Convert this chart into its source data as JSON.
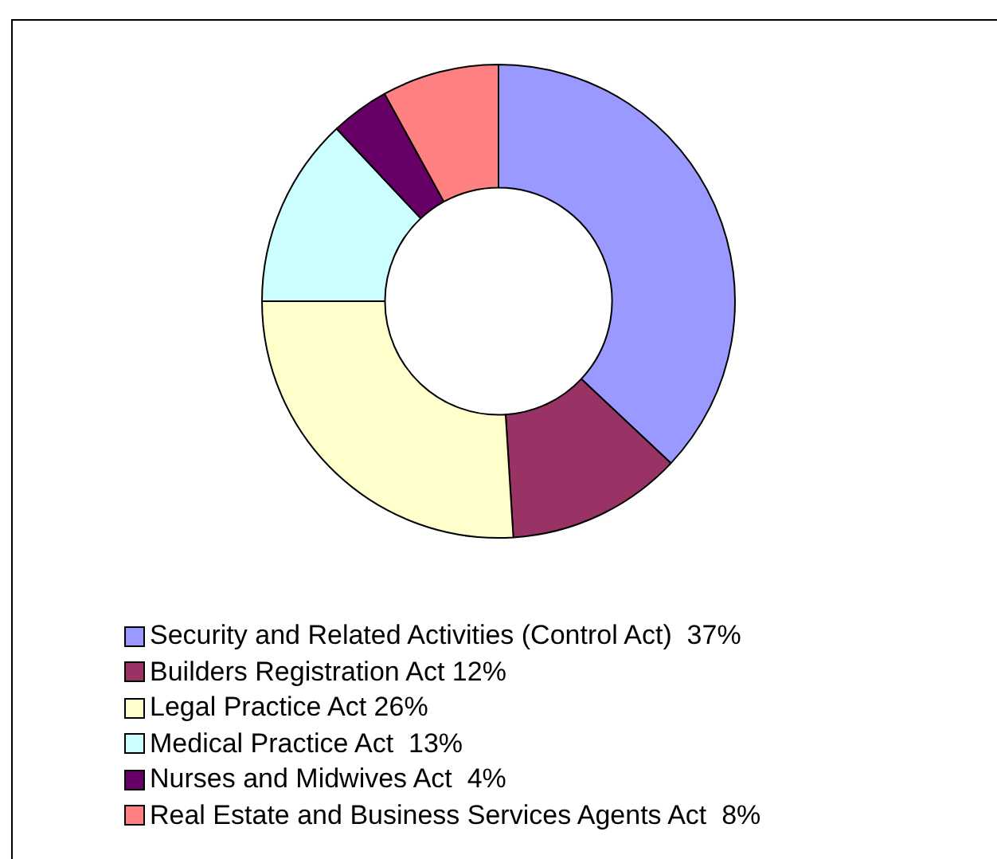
{
  "chart_data": {
    "type": "donut",
    "categories": [
      "Security and Related Activities (Control Act) ",
      "Builders Registration Act",
      "Legal Practice Act",
      "Medical Practice Act ",
      "Nurses and Midwives Act ",
      "Real Estate and Business Services Agents Act "
    ],
    "values": [
      37,
      12,
      26,
      13,
      4,
      8
    ],
    "value_labels": [
      "37%",
      "12%",
      "26%",
      "13%",
      "4%",
      "8%"
    ],
    "colors": [
      "#9999ff",
      "#993366",
      "#ffffcc",
      "#ccffff",
      "#660066",
      "#ff8080"
    ],
    "legend": "bottom"
  }
}
